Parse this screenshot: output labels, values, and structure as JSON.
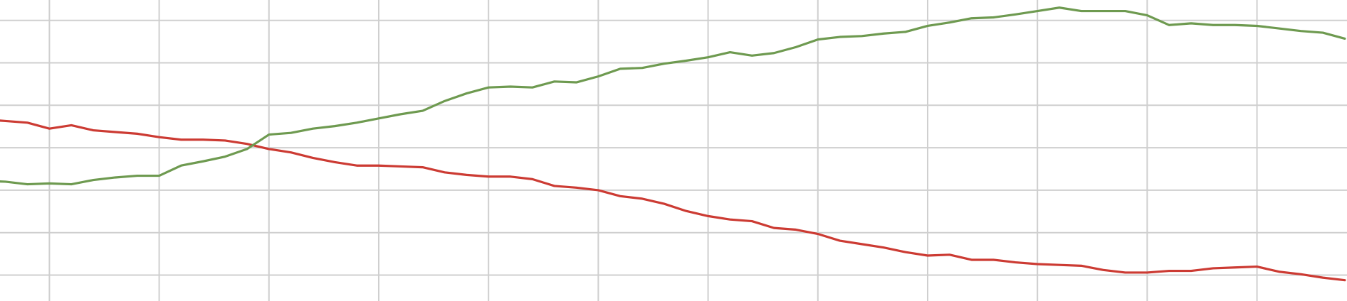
{
  "chart_data": {
    "type": "line",
    "x": [
      0.4,
      0.6,
      0.8,
      1.0,
      1.2,
      1.4,
      1.6,
      1.8,
      2.0,
      2.2,
      2.4,
      2.6,
      2.8,
      3.0,
      3.2,
      3.4,
      3.6,
      3.8,
      4.0,
      4.2,
      4.4,
      4.6,
      4.8,
      5.0,
      5.2,
      5.4,
      5.6,
      5.8,
      6.0,
      6.2,
      6.4,
      6.6,
      6.8,
      7.0,
      7.2,
      7.4,
      7.6,
      7.8,
      8.0,
      8.2,
      8.4,
      8.6,
      8.8,
      9.0,
      9.2,
      9.4,
      9.6,
      9.8,
      10.0,
      10.2,
      10.4,
      10.6,
      10.8,
      11.0,
      11.2,
      11.4,
      11.6,
      11.8,
      12.0,
      12.2,
      12.4,
      12.6,
      12.8
    ],
    "series": [
      {
        "color": "#cc3b33",
        "values": [
          3.67,
          3.63,
          3.59,
          3.45,
          3.53,
          3.41,
          3.37,
          3.33,
          3.25,
          3.19,
          3.19,
          3.17,
          3.09,
          2.97,
          2.89,
          2.76,
          2.66,
          2.58,
          2.58,
          2.56,
          2.54,
          2.42,
          2.36,
          2.32,
          2.32,
          2.26,
          2.1,
          2.06,
          2.0,
          1.86,
          1.8,
          1.68,
          1.51,
          1.39,
          1.31,
          1.27,
          1.11,
          1.07,
          0.97,
          0.81,
          0.73,
          0.65,
          0.54,
          0.46,
          0.48,
          0.36,
          0.36,
          0.3,
          0.26,
          0.24,
          0.22,
          0.12,
          0.06,
          0.06,
          0.1,
          0.1,
          0.16,
          0.18,
          0.2,
          0.08,
          0.02,
          -0.06,
          -0.12
        ]
      },
      {
        "color": "#6e9a50",
        "values": [
          2.22,
          2.2,
          2.14,
          2.16,
          2.14,
          2.24,
          2.3,
          2.34,
          2.34,
          2.58,
          2.68,
          2.79,
          2.97,
          3.31,
          3.35,
          3.45,
          3.51,
          3.59,
          3.69,
          3.79,
          3.87,
          4.1,
          4.28,
          4.42,
          4.44,
          4.42,
          4.56,
          4.54,
          4.68,
          4.86,
          4.88,
          4.98,
          5.05,
          5.13,
          5.25,
          5.17,
          5.23,
          5.37,
          5.55,
          5.61,
          5.63,
          5.69,
          5.73,
          5.87,
          5.95,
          6.05,
          6.07,
          6.14,
          6.22,
          6.3,
          6.22,
          6.22,
          6.22,
          6.12,
          5.89,
          5.93,
          5.89,
          5.89,
          5.87,
          5.81,
          5.75,
          5.71,
          5.57
        ]
      }
    ],
    "xlim": [
      0.55,
      12.82
    ],
    "xticks": [
      1,
      2,
      3,
      4,
      5,
      6,
      7,
      8,
      9,
      10,
      11,
      12
    ],
    "ylim": [
      -0.61,
      6.48
    ],
    "yticks": [
      0,
      1,
      2,
      3,
      4,
      5,
      6
    ],
    "grid": true,
    "grid_color": "#cfcfcf"
  }
}
